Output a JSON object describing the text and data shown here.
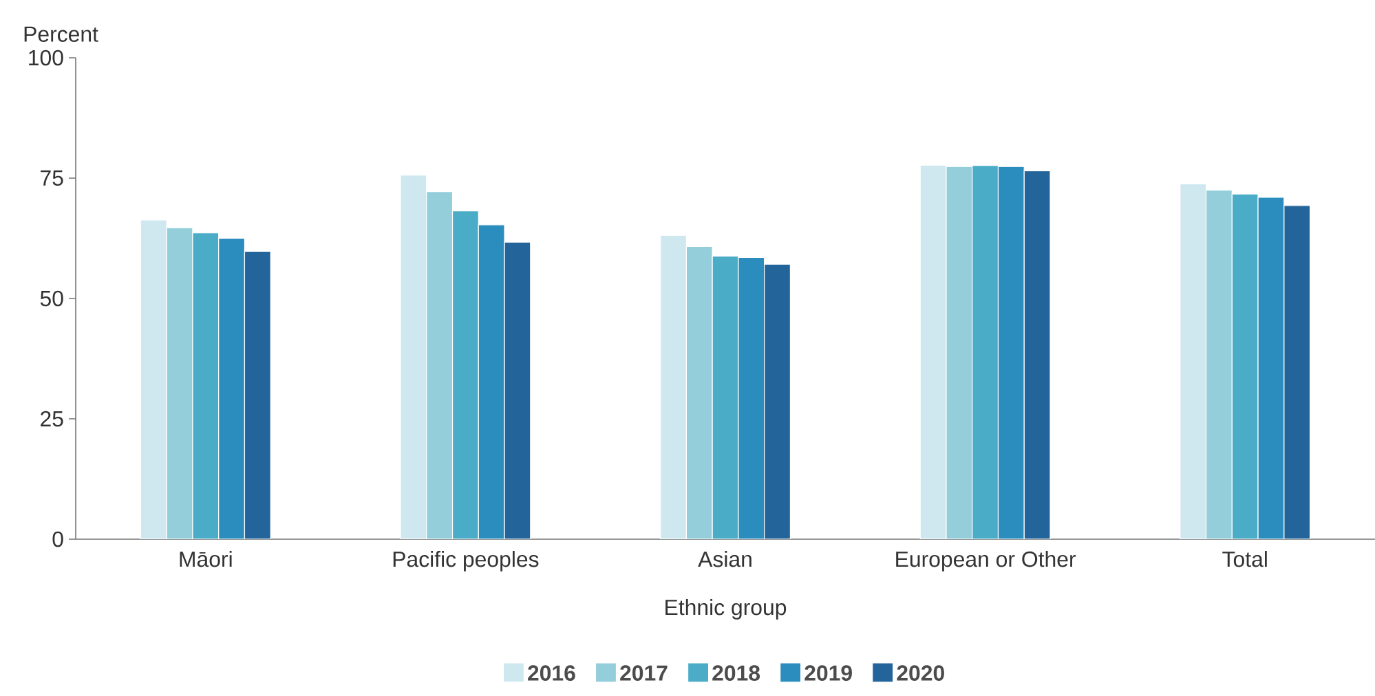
{
  "chart_data": {
    "type": "bar",
    "xlabel": "Ethnic group",
    "ylabel": "Percent",
    "categories": [
      "Māori",
      "Pacific peoples",
      "Asian",
      "European or Other",
      "Total"
    ],
    "series": [
      {
        "name": "2016",
        "color": "#cfe8f0",
        "values": [
          66.3,
          75.6,
          63.1,
          77.7,
          73.8
        ]
      },
      {
        "name": "2017",
        "color": "#94cedb",
        "values": [
          64.7,
          72.2,
          60.8,
          77.4,
          72.5
        ]
      },
      {
        "name": "2018",
        "color": "#4aacc6",
        "values": [
          63.6,
          68.2,
          58.8,
          77.6,
          71.7
        ]
      },
      {
        "name": "2019",
        "color": "#2b8cbe",
        "values": [
          62.5,
          65.3,
          58.5,
          77.4,
          71.0
        ]
      },
      {
        "name": "2020",
        "color": "#23649a",
        "values": [
          59.8,
          61.7,
          57.1,
          76.5,
          69.3
        ]
      }
    ],
    "ylim": [
      0,
      100
    ],
    "yticks": [
      0,
      25,
      50,
      75,
      100
    ],
    "legend": "bottom"
  }
}
